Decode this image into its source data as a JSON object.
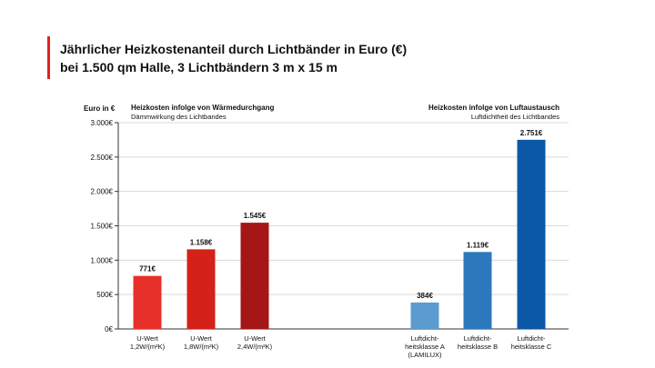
{
  "header": {
    "title_line1": "Jährlicher Heizkostenanteil durch Lichtbänder in Euro (€)",
    "title_line2": "bei 1.500 qm Halle, 3 Lichtbändern 3 m x 15 m"
  },
  "chart_data": {
    "type": "bar",
    "ylabel": "Euro in €",
    "ylim": [
      0,
      3000
    ],
    "yticks": [
      0,
      500,
      1000,
      1500,
      2000,
      2500,
      3000
    ],
    "ytick_labels": [
      "0€",
      "500€",
      "1.000€",
      "1.500€",
      "2.000€",
      "2.500€",
      "3.000€"
    ],
    "grid": true,
    "groups": [
      {
        "title": "Heizkosten infolge von Wärmedurchgang",
        "subtitle": "Dämmwirkung des Lichtbandes",
        "bars": [
          {
            "label_lines": [
              "U-Wert",
              "1,2W/(m²K)"
            ],
            "value": 771,
            "value_label": "771€",
            "color": "#e8302a"
          },
          {
            "label_lines": [
              "U-Wert",
              "1,8W/(m²K)"
            ],
            "value": 1158,
            "value_label": "1.158€",
            "color": "#d42219"
          },
          {
            "label_lines": [
              "U-Wert",
              "2,4W/(m²K)"
            ],
            "value": 1545,
            "value_label": "1.545€",
            "color": "#a51616"
          }
        ]
      },
      {
        "title": "Heizkosten infolge von Luftaustausch",
        "subtitle": "Luftdichtheit des Lichtbandes",
        "bars": [
          {
            "label_lines": [
              "Luftdicht-",
              "heitsklasse A",
              "(LAMILUX)"
            ],
            "value": 384,
            "value_label": "384€",
            "color": "#5b9bd0"
          },
          {
            "label_lines": [
              "Luftdicht-",
              "heitsklasse B"
            ],
            "value": 1119,
            "value_label": "1.119€",
            "color": "#2b78bd"
          },
          {
            "label_lines": [
              "Luftdicht-",
              "heitsklasse C"
            ],
            "value": 2751,
            "value_label": "2.751€",
            "color": "#0b58a6"
          }
        ]
      }
    ]
  }
}
